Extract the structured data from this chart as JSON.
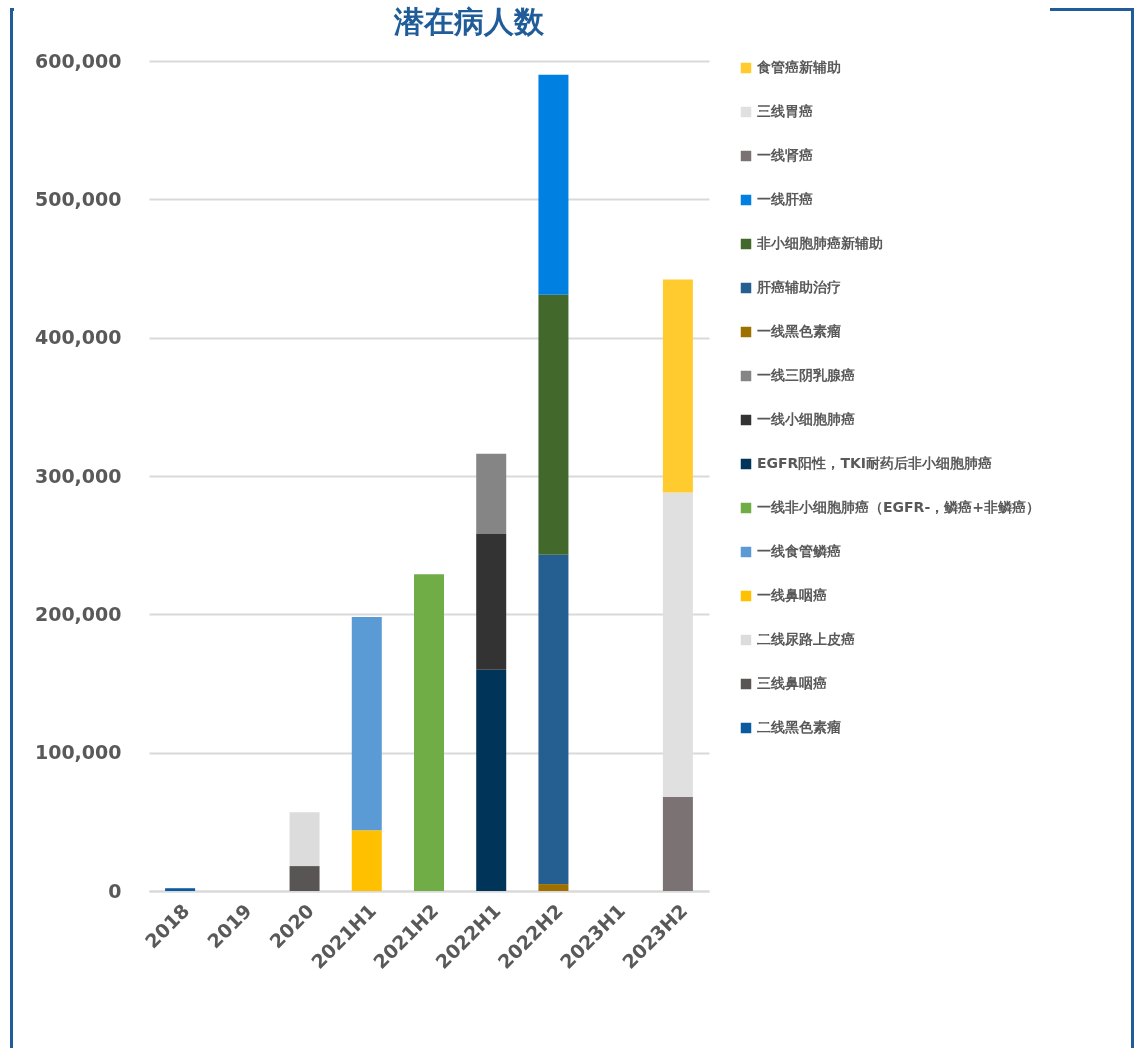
{
  "chart_data": {
    "type": "bar",
    "title": "潜在病人数",
    "stacked": true,
    "legend": "right",
    "grid": "y",
    "categories": [
      "2018",
      "2019",
      "2020",
      "2021H1",
      "2021H2",
      "2022H1",
      "2022H2",
      "2023H1",
      "2023H2"
    ],
    "ylim": [
      0,
      600000
    ],
    "yticks": [
      {
        "value": 0,
        "label": "0"
      },
      {
        "value": 100000,
        "label": "100,000"
      },
      {
        "value": 200000,
        "label": "200,000"
      },
      {
        "value": 300000,
        "label": "300,000"
      },
      {
        "value": 400000,
        "label": "400,000"
      },
      {
        "value": 500000,
        "label": "500,000"
      },
      {
        "value": 600000,
        "label": "600,000"
      }
    ],
    "series": [
      {
        "name": "二线黑色素瘤",
        "color": "#0a5aa0",
        "values": [
          2000,
          null,
          null,
          null,
          null,
          null,
          null,
          null,
          null
        ]
      },
      {
        "name": "三线鼻咽癌",
        "color": "#5a5555",
        "values": [
          null,
          null,
          18000,
          null,
          null,
          null,
          null,
          null,
          null
        ]
      },
      {
        "name": "二线尿路上皮癌",
        "color": "#dcdcdc",
        "values": [
          null,
          null,
          39000,
          null,
          null,
          null,
          null,
          null,
          null
        ]
      },
      {
        "name": "一线鼻咽癌",
        "color": "#ffc000",
        "values": [
          null,
          null,
          null,
          44000,
          null,
          null,
          null,
          null,
          null
        ]
      },
      {
        "name": "一线食管鳞癌",
        "color": "#5b9bd5",
        "values": [
          null,
          null,
          null,
          154000,
          null,
          null,
          null,
          null,
          null
        ]
      },
      {
        "name": "一线非小细胞肺癌（EGFR-，鳞癌+非鳞癌）",
        "color": "#70ad47",
        "values": [
          null,
          null,
          null,
          null,
          229000,
          null,
          null,
          null,
          null
        ]
      },
      {
        "name": "EGFR阳性，TKI耐药后非小细胞肺癌",
        "color": "#003459",
        "values": [
          null,
          null,
          null,
          null,
          null,
          160000,
          null,
          null,
          null
        ]
      },
      {
        "name": "一线小细胞肺癌",
        "color": "#333333",
        "values": [
          null,
          null,
          null,
          null,
          null,
          98000,
          null,
          null,
          null
        ]
      },
      {
        "name": "一线三阴乳腺癌",
        "color": "#858585",
        "values": [
          null,
          null,
          null,
          null,
          null,
          58000,
          null,
          null,
          null
        ]
      },
      {
        "name": "一线黑色素瘤",
        "color": "#9e7000",
        "values": [
          null,
          null,
          null,
          null,
          null,
          null,
          5000,
          null,
          null
        ]
      },
      {
        "name": "肝癌辅助治疗",
        "color": "#255e91",
        "values": [
          null,
          null,
          null,
          null,
          null,
          null,
          238000,
          null,
          null
        ]
      },
      {
        "name": "非小细胞肺癌新辅助",
        "color": "#43682b",
        "values": [
          null,
          null,
          null,
          null,
          null,
          null,
          188000,
          null,
          null
        ]
      },
      {
        "name": "一线肝癌",
        "color": "#0080e0",
        "values": [
          null,
          null,
          null,
          null,
          null,
          null,
          159000,
          null,
          null
        ]
      },
      {
        "name": "一线肾癌",
        "color": "#7b7373",
        "values": [
          null,
          null,
          null,
          null,
          null,
          null,
          null,
          null,
          68000
        ]
      },
      {
        "name": "三线胃癌",
        "color": "#e0e0e0",
        "values": [
          null,
          null,
          null,
          null,
          null,
          null,
          null,
          null,
          220000
        ]
      },
      {
        "name": "食管癌新辅助",
        "color": "#ffcb2f",
        "values": [
          null,
          null,
          null,
          null,
          null,
          null,
          null,
          null,
          154000
        ]
      }
    ]
  }
}
